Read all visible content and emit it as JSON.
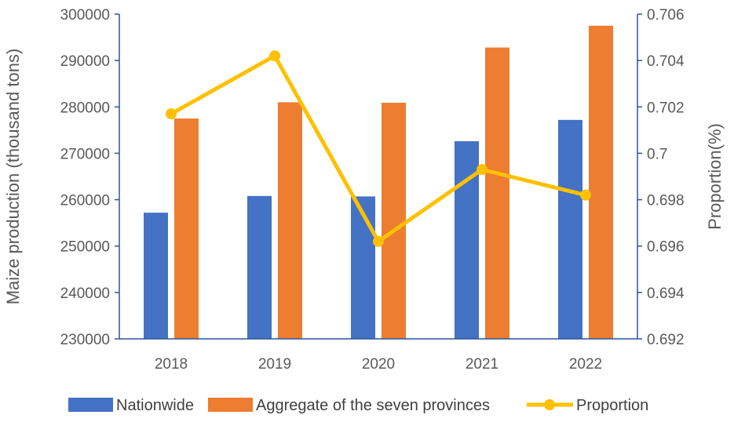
{
  "chart_data": {
    "type": "bar",
    "categories": [
      "2018",
      "2019",
      "2020",
      "2021",
      "2022"
    ],
    "series": [
      {
        "name": "Nationwide",
        "type": "bar",
        "axis": "left",
        "color": "#4472C4",
        "values": [
          257200,
          260800,
          260700,
          272600,
          277200
        ]
      },
      {
        "name": "Aggregate of the seven provinces",
        "type": "bar",
        "axis": "left",
        "color": "#ED7D31",
        "values": [
          277500,
          281000,
          280900,
          292800,
          297500
        ]
      },
      {
        "name": "Proportion",
        "type": "line",
        "axis": "right",
        "color": "#FFC000",
        "values": [
          0.7017,
          0.7042,
          0.6962,
          0.6993,
          0.6982
        ]
      }
    ],
    "ylabel": "Maize production (thousand tons)",
    "ylabel_right": "Proportion(%)",
    "ylim": [
      230000,
      300000
    ],
    "ylim_right": [
      0.692,
      0.706
    ],
    "yticks": [
      "230000",
      "240000",
      "250000",
      "260000",
      "270000",
      "280000",
      "290000",
      "300000"
    ],
    "yticks_right": [
      "0.692",
      "0.694",
      "0.696",
      "0.698",
      "0.7",
      "0.702",
      "0.704",
      "0.706"
    ],
    "grid": false,
    "legend_position": "bottom",
    "axis_color": "#2F5597"
  }
}
